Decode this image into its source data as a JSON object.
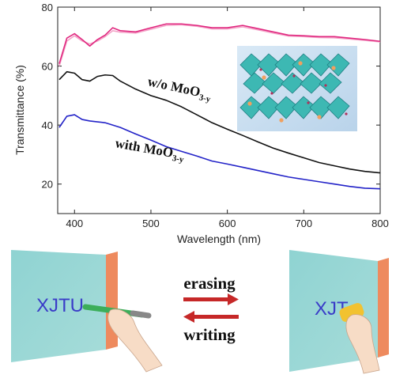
{
  "chart_data": {
    "type": "line",
    "y_label": "Transmittance (%)",
    "x_label": "Wavelength (nm)",
    "x": [
      380,
      390,
      400,
      410,
      420,
      430,
      440,
      450,
      460,
      480,
      500,
      520,
      540,
      560,
      580,
      600,
      620,
      640,
      660,
      680,
      700,
      720,
      740,
      760,
      780,
      800
    ],
    "series": [
      {
        "color": "#f4a3c8",
        "values": [
          60,
          68.5,
          70.3,
          68.5,
          67.5,
          68.5,
          70,
          72,
          71.5,
          71.2,
          72.5,
          73.8,
          74,
          73.5,
          72.6,
          72.6,
          73.3,
          72.3,
          71.2,
          70.2,
          70,
          69.7,
          69.6,
          69.2,
          68.7,
          68.2
        ]
      },
      {
        "color": "#e0287f",
        "values": [
          60.8,
          69.5,
          71,
          69,
          66.8,
          69,
          70.5,
          73,
          72,
          71.6,
          73,
          74.3,
          74.3,
          73.8,
          73,
          73,
          73.8,
          72.7,
          71.6,
          70.5,
          70.3,
          70,
          70,
          69.5,
          69,
          68.4
        ]
      },
      {
        "color": "#111111",
        "values": [
          55.4,
          58.1,
          57.6,
          55.4,
          54.9,
          56.5,
          57,
          56.8,
          54.9,
          52.2,
          50,
          48.4,
          46.2,
          43.5,
          40.8,
          38.6,
          36.5,
          34.3,
          32.2,
          30.5,
          28.9,
          27.3,
          26.2,
          25.1,
          24.3,
          23.8
        ]
      },
      {
        "color": "#2323c8",
        "values": [
          39.2,
          43,
          43.5,
          41.9,
          41.4,
          41.1,
          40.8,
          40,
          39.2,
          37,
          34.9,
          32.7,
          31.1,
          29.5,
          27.8,
          26.8,
          25.7,
          24.6,
          23.5,
          22.4,
          21.6,
          20.8,
          20,
          19.2,
          18.6,
          18.4
        ]
      }
    ],
    "annotations": [
      {
        "text": "w/o MoO",
        "sub": "3-y"
      },
      {
        "text": "with MoO",
        "sub": "3-y"
      }
    ],
    "xlim": [
      378,
      800
    ],
    "ylim": [
      10,
      80
    ],
    "xticks": [
      400,
      500,
      600,
      700,
      800
    ],
    "yticks": [
      20,
      40,
      60,
      80
    ]
  },
  "illustration": {
    "left_board": "XJTU",
    "right_board": "XJT",
    "top_arrow": "erasing",
    "bottom_arrow": "writing"
  }
}
